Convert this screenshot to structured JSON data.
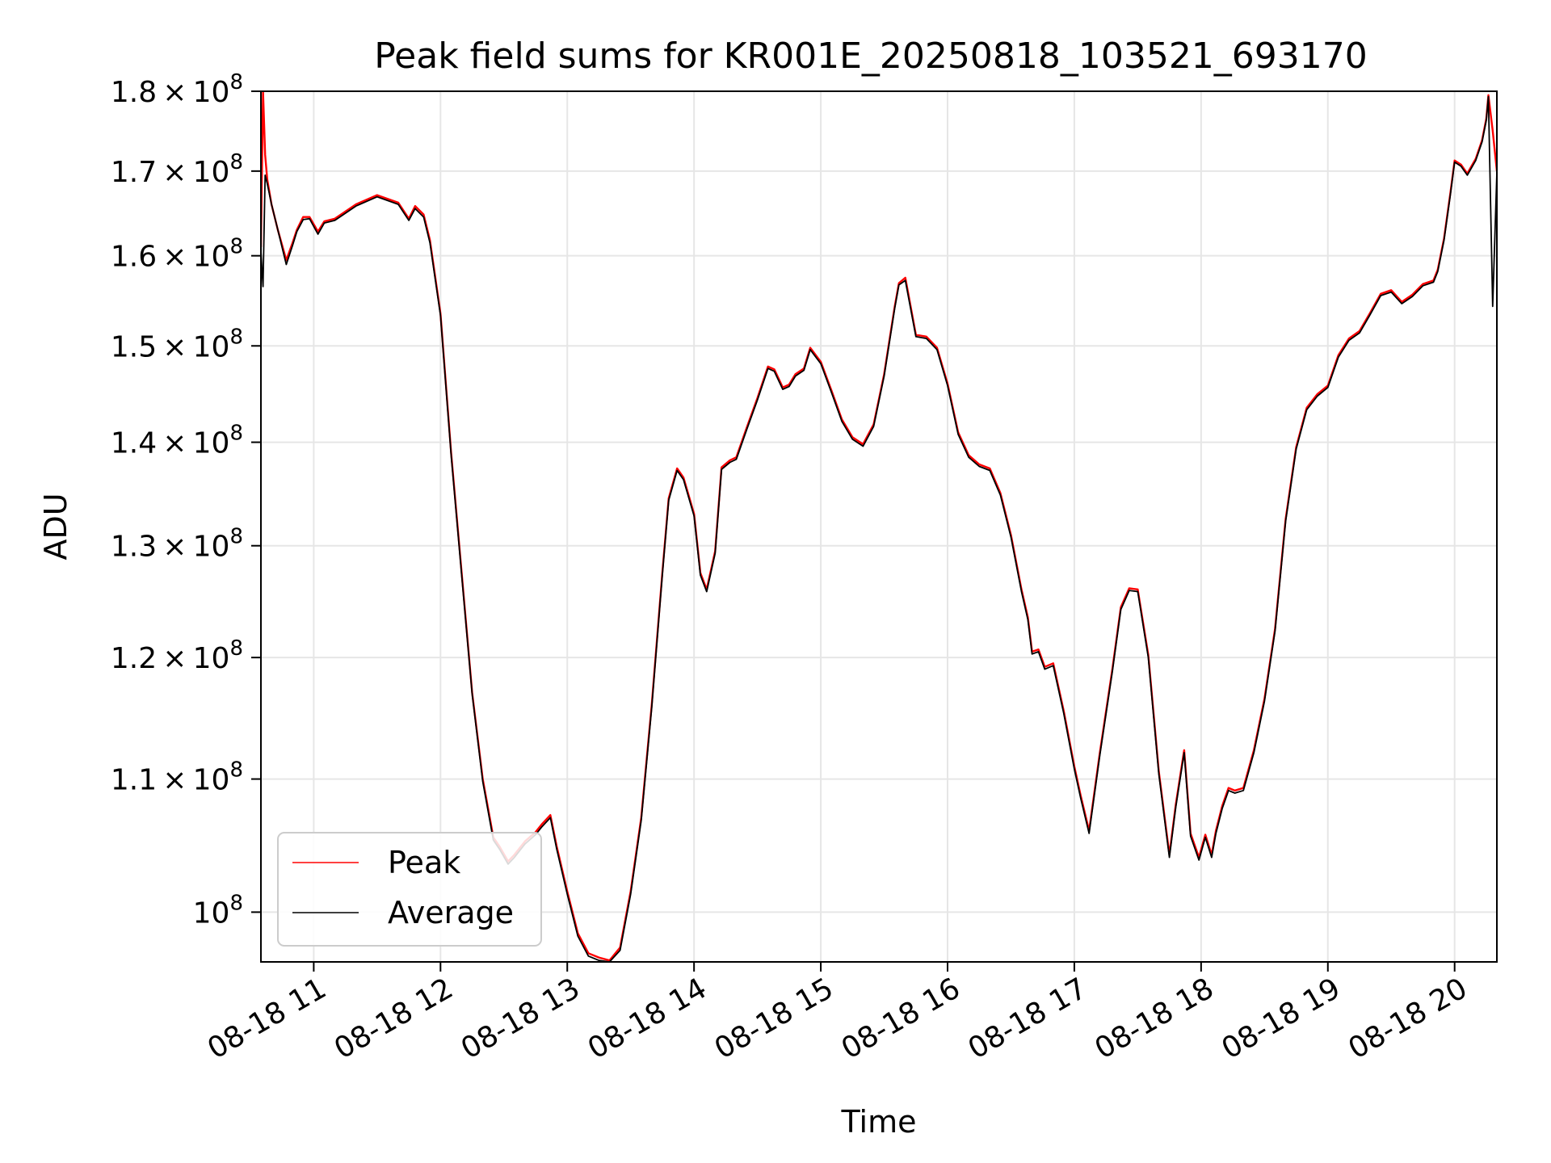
{
  "chart_data": {
    "type": "line",
    "title": "Peak field sums for KR001E_20250818_103521_693170",
    "xlabel": "Time",
    "ylabel": "ADU",
    "x_scale": "time",
    "y_scale": "log",
    "xlim": [
      "2025-08-18T10:35",
      "2025-08-18T20:20"
    ],
    "ylim": [
      96500000,
      180000000
    ],
    "grid": true,
    "legend_position": "lower-left",
    "x_ticks": [
      {
        "value": "2025-08-18T11:00",
        "label": "08-18 11"
      },
      {
        "value": "2025-08-18T12:00",
        "label": "08-18 12"
      },
      {
        "value": "2025-08-18T13:00",
        "label": "08-18 13"
      },
      {
        "value": "2025-08-18T14:00",
        "label": "08-18 14"
      },
      {
        "value": "2025-08-18T15:00",
        "label": "08-18 15"
      },
      {
        "value": "2025-08-18T16:00",
        "label": "08-18 16"
      },
      {
        "value": "2025-08-18T17:00",
        "label": "08-18 17"
      },
      {
        "value": "2025-08-18T18:00",
        "label": "08-18 18"
      },
      {
        "value": "2025-08-18T19:00",
        "label": "08-18 19"
      },
      {
        "value": "2025-08-18T20:00",
        "label": "08-18 20"
      }
    ],
    "y_ticks": [
      {
        "value": 100000000,
        "mantissa": "",
        "exponent": "8"
      },
      {
        "value": 110000000,
        "mantissa": "1.1",
        "exponent": "8"
      },
      {
        "value": 120000000,
        "mantissa": "1.2",
        "exponent": "8"
      },
      {
        "value": 130000000,
        "mantissa": "1.3",
        "exponent": "8"
      },
      {
        "value": 140000000,
        "mantissa": "1.4",
        "exponent": "8"
      },
      {
        "value": 150000000,
        "mantissa": "1.5",
        "exponent": "8"
      },
      {
        "value": 160000000,
        "mantissa": "1.6",
        "exponent": "8"
      },
      {
        "value": 170000000,
        "mantissa": "1.7",
        "exponent": "8"
      },
      {
        "value": 180000000,
        "mantissa": "1.8",
        "exponent": "8"
      }
    ],
    "x": [
      "2025-08-18T10:35",
      "2025-08-18T10:36",
      "2025-08-18T10:37",
      "2025-08-18T10:38",
      "2025-08-18T10:40",
      "2025-08-18T10:43",
      "2025-08-18T10:47",
      "2025-08-18T10:50",
      "2025-08-18T10:52",
      "2025-08-18T10:55",
      "2025-08-18T10:58",
      "2025-08-18T11:02",
      "2025-08-18T11:05",
      "2025-08-18T11:10",
      "2025-08-18T11:20",
      "2025-08-18T11:30",
      "2025-08-18T11:40",
      "2025-08-18T11:45",
      "2025-08-18T11:48",
      "2025-08-18T11:52",
      "2025-08-18T11:55",
      "2025-08-18T12:00",
      "2025-08-18T12:05",
      "2025-08-18T12:10",
      "2025-08-18T12:15",
      "2025-08-18T12:20",
      "2025-08-18T12:25",
      "2025-08-18T12:28",
      "2025-08-18T12:32",
      "2025-08-18T12:35",
      "2025-08-18T12:40",
      "2025-08-18T12:45",
      "2025-08-18T12:48",
      "2025-08-18T12:52",
      "2025-08-18T12:55",
      "2025-08-18T13:00",
      "2025-08-18T13:05",
      "2025-08-18T13:10",
      "2025-08-18T13:15",
      "2025-08-18T13:20",
      "2025-08-18T13:25",
      "2025-08-18T13:30",
      "2025-08-18T13:35",
      "2025-08-18T13:40",
      "2025-08-18T13:45",
      "2025-08-18T13:48",
      "2025-08-18T13:52",
      "2025-08-18T13:55",
      "2025-08-18T14:00",
      "2025-08-18T14:03",
      "2025-08-18T14:06",
      "2025-08-18T14:10",
      "2025-08-18T14:13",
      "2025-08-18T14:17",
      "2025-08-18T14:20",
      "2025-08-18T14:25",
      "2025-08-18T14:30",
      "2025-08-18T14:35",
      "2025-08-18T14:38",
      "2025-08-18T14:42",
      "2025-08-18T14:45",
      "2025-08-18T14:48",
      "2025-08-18T14:52",
      "2025-08-18T14:55",
      "2025-08-18T15:00",
      "2025-08-18T15:05",
      "2025-08-18T15:10",
      "2025-08-18T15:15",
      "2025-08-18T15:20",
      "2025-08-18T15:25",
      "2025-08-18T15:30",
      "2025-08-18T15:35",
      "2025-08-18T15:37",
      "2025-08-18T15:40",
      "2025-08-18T15:45",
      "2025-08-18T15:50",
      "2025-08-18T15:55",
      "2025-08-18T16:00",
      "2025-08-18T16:05",
      "2025-08-18T16:10",
      "2025-08-18T16:15",
      "2025-08-18T16:20",
      "2025-08-18T16:25",
      "2025-08-18T16:30",
      "2025-08-18T16:35",
      "2025-08-18T16:38",
      "2025-08-18T16:40",
      "2025-08-18T16:43",
      "2025-08-18T16:46",
      "2025-08-18T16:50",
      "2025-08-18T16:55",
      "2025-08-18T17:00",
      "2025-08-18T17:03",
      "2025-08-18T17:07",
      "2025-08-18T17:12",
      "2025-08-18T17:18",
      "2025-08-18T17:22",
      "2025-08-18T17:26",
      "2025-08-18T17:30",
      "2025-08-18T17:35",
      "2025-08-18T17:40",
      "2025-08-18T17:45",
      "2025-08-18T17:48",
      "2025-08-18T17:52",
      "2025-08-18T17:55",
      "2025-08-18T17:59",
      "2025-08-18T18:02",
      "2025-08-18T18:05",
      "2025-08-18T18:07",
      "2025-08-18T18:10",
      "2025-08-18T18:13",
      "2025-08-18T18:16",
      "2025-08-18T18:20",
      "2025-08-18T18:25",
      "2025-08-18T18:30",
      "2025-08-18T18:35",
      "2025-08-18T18:40",
      "2025-08-18T18:45",
      "2025-08-18T18:50",
      "2025-08-18T18:55",
      "2025-08-18T19:00",
      "2025-08-18T19:05",
      "2025-08-18T19:10",
      "2025-08-18T19:15",
      "2025-08-18T19:20",
      "2025-08-18T19:25",
      "2025-08-18T19:30",
      "2025-08-18T19:35",
      "2025-08-18T19:40",
      "2025-08-18T19:45",
      "2025-08-18T19:50",
      "2025-08-18T19:52",
      "2025-08-18T19:55",
      "2025-08-18T19:58",
      "2025-08-18T20:00",
      "2025-08-18T20:03",
      "2025-08-18T20:06",
      "2025-08-18T20:10",
      "2025-08-18T20:13",
      "2025-08-18T20:15",
      "2025-08-18T20:16",
      "2025-08-18T20:18",
      "2025-08-18T20:20"
    ],
    "series": [
      {
        "name": "Peak",
        "color": "#ff0000",
        "values": [
          161000000,
          180000000,
          172000000,
          169000000,
          166000000,
          163000000,
          159500000,
          161500000,
          163000000,
          164500000,
          164500000,
          162800000,
          164000000,
          164300000,
          166000000,
          167100000,
          166200000,
          164300000,
          165800000,
          164800000,
          161800000,
          153500000,
          139000000,
          127500000,
          117000000,
          110000000,
          105500000,
          104800000,
          103700000,
          104200000,
          105200000,
          105900000,
          106500000,
          107200000,
          104800000,
          101500000,
          98500000,
          97100000,
          96800000,
          96600000,
          97500000,
          101500000,
          107000000,
          116000000,
          127500000,
          134500000,
          137400000,
          136500000,
          133000000,
          127500000,
          126000000,
          129500000,
          137500000,
          138200000,
          138500000,
          141500000,
          144500000,
          147800000,
          147500000,
          145600000,
          145900000,
          147000000,
          147600000,
          149800000,
          148300000,
          145300000,
          142300000,
          140500000,
          139800000,
          141800000,
          147000000,
          154300000,
          156900000,
          157500000,
          151200000,
          151000000,
          149800000,
          146000000,
          141000000,
          138700000,
          137800000,
          137400000,
          135000000,
          131000000,
          126000000,
          123500000,
          120500000,
          120700000,
          119200000,
          119500000,
          115500000,
          111000000,
          108700000,
          106000000,
          112000000,
          119000000,
          124400000,
          126100000,
          126000000,
          120200000,
          110600000,
          104200000,
          108000000,
          112300000,
          105800000,
          104000000,
          105700000,
          104200000,
          106000000,
          107900000,
          109300000,
          109100000,
          109300000,
          112300000,
          116500000,
          122500000,
          132500000,
          139500000,
          143500000,
          144900000,
          145800000,
          149000000,
          150800000,
          151600000,
          153600000,
          155700000,
          156100000,
          154800000,
          155600000,
          156800000,
          157200000,
          158400000,
          162000000,
          167400000,
          171300000,
          170800000,
          169700000,
          171500000,
          173800000,
          176500000,
          179500000,
          175000000,
          170000000
        ]
      },
      {
        "name": "Average",
        "color": "#000000",
        "values": [
          160500000,
          156500000,
          169500000,
          168500000,
          166000000,
          163000000,
          159000000,
          161200000,
          162800000,
          164200000,
          164300000,
          162500000,
          163800000,
          164100000,
          165800000,
          166900000,
          166000000,
          164100000,
          165500000,
          164500000,
          161500000,
          153300000,
          138800000,
          127300000,
          116900000,
          109800000,
          105300000,
          104600000,
          103500000,
          104000000,
          105000000,
          105700000,
          106300000,
          107000000,
          104600000,
          101300000,
          98300000,
          96900000,
          96600000,
          96500000,
          97300000,
          101300000,
          106800000,
          115800000,
          127300000,
          134300000,
          137200000,
          136300000,
          132800000,
          127300000,
          125800000,
          129300000,
          137300000,
          138000000,
          138300000,
          141300000,
          144300000,
          147600000,
          147300000,
          145400000,
          145700000,
          146800000,
          147400000,
          149600000,
          148100000,
          145100000,
          142100000,
          140300000,
          139600000,
          141600000,
          146800000,
          154100000,
          156700000,
          157200000,
          151000000,
          150800000,
          149600000,
          145800000,
          140800000,
          138500000,
          137600000,
          137200000,
          134800000,
          130800000,
          125800000,
          123300000,
          120300000,
          120500000,
          119000000,
          119300000,
          115300000,
          110800000,
          108500000,
          105800000,
          111800000,
          118800000,
          124200000,
          125900000,
          125800000,
          120000000,
          110400000,
          104000000,
          107800000,
          112100000,
          105600000,
          103800000,
          105500000,
          104000000,
          105800000,
          107700000,
          109100000,
          108900000,
          109100000,
          112100000,
          116300000,
          122300000,
          132300000,
          139300000,
          143300000,
          144700000,
          145600000,
          148800000,
          150600000,
          151400000,
          153400000,
          155500000,
          155900000,
          154600000,
          155400000,
          156600000,
          157000000,
          158200000,
          161800000,
          167200000,
          171100000,
          170600000,
          169500000,
          171300000,
          173600000,
          176300000,
          179300000,
          154300000,
          169800000
        ]
      }
    ]
  }
}
